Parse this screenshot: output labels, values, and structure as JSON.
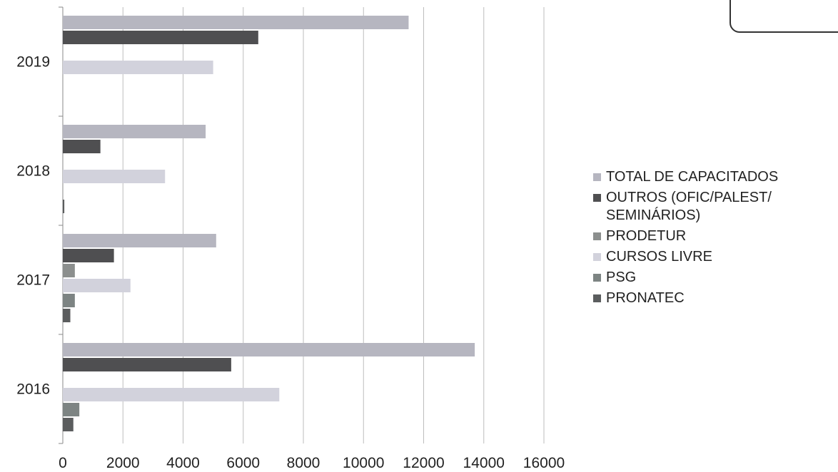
{
  "chart_data": {
    "type": "bar",
    "orientation": "horizontal",
    "categories": [
      "2019",
      "2018",
      "2017",
      "2016"
    ],
    "xlim": [
      0,
      16000
    ],
    "xticks": [
      "0",
      "2000",
      "4000",
      "6000",
      "8000",
      "10000",
      "12000",
      "14000",
      "16000"
    ],
    "grid": true,
    "legend_position": "right",
    "series": [
      {
        "name": "TOTAL DE CAPACITADOS",
        "color": "#b6b6c0",
        "values": [
          11500,
          4750,
          5100,
          13700
        ]
      },
      {
        "name": "OUTROS (OFIC/PALEST/ SEMINÁRIOS)",
        "color": "#4f4f51",
        "values": [
          6500,
          1250,
          1700,
          5600
        ]
      },
      {
        "name": "PRODETUR",
        "color": "#8c8f8e",
        "values": [
          0,
          0,
          400,
          0
        ]
      },
      {
        "name": "CURSOS LIVRE",
        "color": "#d2d2dc",
        "values": [
          5000,
          3400,
          2250,
          7200
        ]
      },
      {
        "name": "PSG",
        "color": "#7d8483",
        "values": [
          0,
          0,
          400,
          550
        ]
      },
      {
        "name": "PRONATEC",
        "color": "#5b5d5e",
        "values": [
          0,
          50,
          250,
          350
        ]
      }
    ]
  }
}
